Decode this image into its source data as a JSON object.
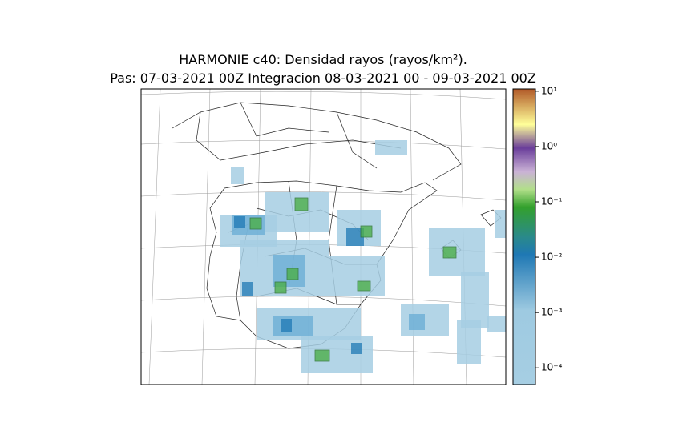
{
  "header": {
    "title_lines": [
      "HARMONIE c40: Densidad rayos  (rayos/km²).",
      "Pas: 07-03-2021 00Z Integracion 08-03-2021 00 - 09-03-2021 00Z"
    ]
  },
  "colorbar": {
    "scale": "log",
    "lim": [
      5e-05,
      11
    ],
    "ticks": [
      {
        "value": 0.0001,
        "label": "10⁻⁴"
      },
      {
        "value": 0.001,
        "label": "10⁻³"
      },
      {
        "value": 0.01,
        "label": "10⁻²"
      },
      {
        "value": 0.1,
        "label": "10⁻¹"
      },
      {
        "value": 1,
        "label": "10⁰"
      },
      {
        "value": 10,
        "label": "10¹"
      }
    ]
  }
}
